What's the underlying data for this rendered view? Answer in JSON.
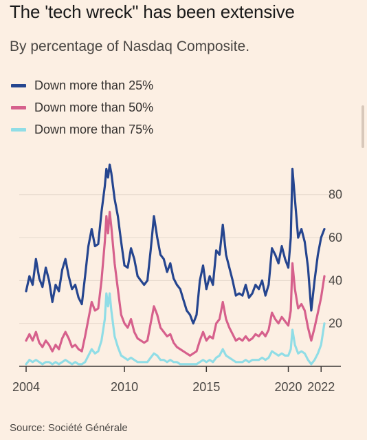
{
  "title": "The 'tech wreck\" has been extensive",
  "subtitle": "By percentage of Nasdaq Composite.",
  "source": "Source: Société Générale",
  "legend": [
    {
      "label": "Down more than 25%",
      "color": "#25458f"
    },
    {
      "label": "Down more than 50%",
      "color": "#d6608c"
    },
    {
      "label": "Down more than 75%",
      "color": "#90dde6"
    }
  ],
  "chart_data": {
    "type": "line",
    "title": "The 'tech wreck\" has been extensive",
    "subtitle": "By percentage of Nasdaq Composite.",
    "x_ticks": [
      "2004",
      "2010",
      "2015",
      "2020",
      "2022"
    ],
    "y_ticks": [
      "20",
      "40",
      "60",
      "80"
    ],
    "xlim": [
      2004,
      2022.2
    ],
    "ylim": [
      0,
      95
    ],
    "grid": true,
    "legend_position": "top-left",
    "series": [
      {
        "name": "Down more than 25%",
        "color": "#25458f",
        "points": [
          [
            2004.0,
            35
          ],
          [
            2004.2,
            42
          ],
          [
            2004.4,
            38
          ],
          [
            2004.6,
            50
          ],
          [
            2004.8,
            41
          ],
          [
            2005.0,
            37
          ],
          [
            2005.2,
            46
          ],
          [
            2005.4,
            40
          ],
          [
            2005.6,
            30
          ],
          [
            2005.8,
            38
          ],
          [
            2006.0,
            35
          ],
          [
            2006.2,
            45
          ],
          [
            2006.4,
            50
          ],
          [
            2006.6,
            42
          ],
          [
            2006.8,
            36
          ],
          [
            2007.0,
            38
          ],
          [
            2007.2,
            32
          ],
          [
            2007.4,
            29
          ],
          [
            2007.6,
            42
          ],
          [
            2007.8,
            56
          ],
          [
            2008.0,
            64
          ],
          [
            2008.2,
            56
          ],
          [
            2008.4,
            57
          ],
          [
            2008.6,
            72
          ],
          [
            2008.8,
            84
          ],
          [
            2008.9,
            92
          ],
          [
            2009.0,
            88
          ],
          [
            2009.1,
            94
          ],
          [
            2009.2,
            90
          ],
          [
            2009.4,
            78
          ],
          [
            2009.6,
            70
          ],
          [
            2009.8,
            58
          ],
          [
            2010.0,
            47
          ],
          [
            2010.2,
            46
          ],
          [
            2010.4,
            55
          ],
          [
            2010.6,
            50
          ],
          [
            2010.8,
            42
          ],
          [
            2011.0,
            40
          ],
          [
            2011.2,
            38
          ],
          [
            2011.4,
            40
          ],
          [
            2011.6,
            54
          ],
          [
            2011.8,
            70
          ],
          [
            2012.0,
            60
          ],
          [
            2012.2,
            52
          ],
          [
            2012.4,
            50
          ],
          [
            2012.6,
            44
          ],
          [
            2012.8,
            48
          ],
          [
            2013.0,
            41
          ],
          [
            2013.2,
            38
          ],
          [
            2013.4,
            36
          ],
          [
            2013.6,
            31
          ],
          [
            2013.8,
            26
          ],
          [
            2014.0,
            24
          ],
          [
            2014.2,
            20
          ],
          [
            2014.4,
            24
          ],
          [
            2014.6,
            40
          ],
          [
            2014.8,
            47
          ],
          [
            2015.0,
            36
          ],
          [
            2015.2,
            42
          ],
          [
            2015.4,
            38
          ],
          [
            2015.6,
            54
          ],
          [
            2015.8,
            52
          ],
          [
            2016.0,
            66
          ],
          [
            2016.2,
            52
          ],
          [
            2016.4,
            46
          ],
          [
            2016.6,
            40
          ],
          [
            2016.8,
            33
          ],
          [
            2017.0,
            34
          ],
          [
            2017.2,
            33
          ],
          [
            2017.4,
            38
          ],
          [
            2017.6,
            32
          ],
          [
            2017.8,
            34
          ],
          [
            2018.0,
            38
          ],
          [
            2018.2,
            36
          ],
          [
            2018.4,
            40
          ],
          [
            2018.6,
            33
          ],
          [
            2018.8,
            38
          ],
          [
            2019.0,
            55
          ],
          [
            2019.2,
            52
          ],
          [
            2019.4,
            48
          ],
          [
            2019.6,
            56
          ],
          [
            2019.8,
            50
          ],
          [
            2020.0,
            46
          ],
          [
            2020.15,
            60
          ],
          [
            2020.25,
            92
          ],
          [
            2020.4,
            78
          ],
          [
            2020.6,
            60
          ],
          [
            2020.8,
            64
          ],
          [
            2021.0,
            58
          ],
          [
            2021.2,
            46
          ],
          [
            2021.4,
            26
          ],
          [
            2021.6,
            40
          ],
          [
            2021.8,
            52
          ],
          [
            2022.0,
            60
          ],
          [
            2022.2,
            64
          ]
        ]
      },
      {
        "name": "Down more than 50%",
        "color": "#d6608c",
        "points": [
          [
            2004.0,
            12
          ],
          [
            2004.2,
            15
          ],
          [
            2004.4,
            12
          ],
          [
            2004.6,
            16
          ],
          [
            2004.8,
            11
          ],
          [
            2005.0,
            9
          ],
          [
            2005.2,
            12
          ],
          [
            2005.4,
            10
          ],
          [
            2005.6,
            7
          ],
          [
            2005.8,
            10
          ],
          [
            2006.0,
            8
          ],
          [
            2006.2,
            13
          ],
          [
            2006.4,
            16
          ],
          [
            2006.6,
            13
          ],
          [
            2006.8,
            9
          ],
          [
            2007.0,
            10
          ],
          [
            2007.2,
            8
          ],
          [
            2007.4,
            7
          ],
          [
            2007.6,
            14
          ],
          [
            2007.8,
            22
          ],
          [
            2008.0,
            30
          ],
          [
            2008.2,
            26
          ],
          [
            2008.4,
            27
          ],
          [
            2008.6,
            40
          ],
          [
            2008.8,
            58
          ],
          [
            2008.9,
            70
          ],
          [
            2009.0,
            62
          ],
          [
            2009.1,
            72
          ],
          [
            2009.2,
            65
          ],
          [
            2009.4,
            48
          ],
          [
            2009.6,
            36
          ],
          [
            2009.8,
            24
          ],
          [
            2010.0,
            20
          ],
          [
            2010.2,
            18
          ],
          [
            2010.4,
            22
          ],
          [
            2010.6,
            16
          ],
          [
            2010.8,
            13
          ],
          [
            2011.0,
            12
          ],
          [
            2011.2,
            11
          ],
          [
            2011.4,
            12
          ],
          [
            2011.6,
            20
          ],
          [
            2011.8,
            28
          ],
          [
            2012.0,
            24
          ],
          [
            2012.2,
            18
          ],
          [
            2012.4,
            16
          ],
          [
            2012.6,
            14
          ],
          [
            2012.8,
            15
          ],
          [
            2013.0,
            11
          ],
          [
            2013.2,
            9
          ],
          [
            2013.4,
            8
          ],
          [
            2013.6,
            7
          ],
          [
            2013.8,
            6
          ],
          [
            2014.0,
            5
          ],
          [
            2014.2,
            6
          ],
          [
            2014.4,
            7
          ],
          [
            2014.6,
            12
          ],
          [
            2014.8,
            16
          ],
          [
            2015.0,
            12
          ],
          [
            2015.2,
            14
          ],
          [
            2015.4,
            13
          ],
          [
            2015.6,
            20
          ],
          [
            2015.8,
            22
          ],
          [
            2016.0,
            30
          ],
          [
            2016.2,
            22
          ],
          [
            2016.4,
            18
          ],
          [
            2016.6,
            15
          ],
          [
            2016.8,
            12
          ],
          [
            2017.0,
            13
          ],
          [
            2017.2,
            12
          ],
          [
            2017.4,
            14
          ],
          [
            2017.6,
            12
          ],
          [
            2017.8,
            13
          ],
          [
            2018.0,
            15
          ],
          [
            2018.2,
            14
          ],
          [
            2018.4,
            16
          ],
          [
            2018.6,
            14
          ],
          [
            2018.8,
            17
          ],
          [
            2019.0,
            25
          ],
          [
            2019.2,
            22
          ],
          [
            2019.4,
            20
          ],
          [
            2019.6,
            23
          ],
          [
            2019.8,
            21
          ],
          [
            2020.0,
            19
          ],
          [
            2020.15,
            26
          ],
          [
            2020.25,
            48
          ],
          [
            2020.4,
            36
          ],
          [
            2020.6,
            27
          ],
          [
            2020.8,
            29
          ],
          [
            2021.0,
            26
          ],
          [
            2021.2,
            18
          ],
          [
            2021.4,
            12
          ],
          [
            2021.6,
            18
          ],
          [
            2021.8,
            25
          ],
          [
            2022.0,
            32
          ],
          [
            2022.2,
            42
          ]
        ]
      },
      {
        "name": "Down more than 75%",
        "color": "#90dde6",
        "points": [
          [
            2004.0,
            1
          ],
          [
            2004.2,
            3
          ],
          [
            2004.4,
            2
          ],
          [
            2004.6,
            3
          ],
          [
            2004.8,
            2
          ],
          [
            2005.0,
            1
          ],
          [
            2005.2,
            2
          ],
          [
            2005.4,
            2
          ],
          [
            2005.6,
            1
          ],
          [
            2005.8,
            2
          ],
          [
            2006.0,
            1
          ],
          [
            2006.2,
            2
          ],
          [
            2006.4,
            3
          ],
          [
            2006.6,
            2
          ],
          [
            2006.8,
            1
          ],
          [
            2007.0,
            2
          ],
          [
            2007.2,
            1
          ],
          [
            2007.4,
            1
          ],
          [
            2007.6,
            2
          ],
          [
            2007.8,
            5
          ],
          [
            2008.0,
            8
          ],
          [
            2008.2,
            6
          ],
          [
            2008.4,
            7
          ],
          [
            2008.6,
            12
          ],
          [
            2008.8,
            22
          ],
          [
            2008.9,
            34
          ],
          [
            2009.0,
            28
          ],
          [
            2009.1,
            34
          ],
          [
            2009.2,
            26
          ],
          [
            2009.4,
            14
          ],
          [
            2009.6,
            9
          ],
          [
            2009.8,
            5
          ],
          [
            2010.0,
            4
          ],
          [
            2010.2,
            3
          ],
          [
            2010.4,
            4
          ],
          [
            2010.6,
            3
          ],
          [
            2010.8,
            2
          ],
          [
            2011.0,
            2
          ],
          [
            2011.2,
            2
          ],
          [
            2011.4,
            2
          ],
          [
            2011.6,
            4
          ],
          [
            2011.8,
            6
          ],
          [
            2012.0,
            5
          ],
          [
            2012.2,
            3
          ],
          [
            2012.4,
            3
          ],
          [
            2012.6,
            2
          ],
          [
            2012.8,
            3
          ],
          [
            2013.0,
            2
          ],
          [
            2013.2,
            2
          ],
          [
            2013.4,
            1
          ],
          [
            2013.6,
            1
          ],
          [
            2013.8,
            1
          ],
          [
            2014.0,
            1
          ],
          [
            2014.2,
            1
          ],
          [
            2014.4,
            1
          ],
          [
            2014.6,
            2
          ],
          [
            2014.8,
            3
          ],
          [
            2015.0,
            2
          ],
          [
            2015.2,
            3
          ],
          [
            2015.4,
            2
          ],
          [
            2015.6,
            4
          ],
          [
            2015.8,
            5
          ],
          [
            2016.0,
            8
          ],
          [
            2016.2,
            5
          ],
          [
            2016.4,
            4
          ],
          [
            2016.6,
            3
          ],
          [
            2016.8,
            2
          ],
          [
            2017.0,
            2
          ],
          [
            2017.2,
            2
          ],
          [
            2017.4,
            3
          ],
          [
            2017.6,
            2
          ],
          [
            2017.8,
            3
          ],
          [
            2018.0,
            3
          ],
          [
            2018.2,
            3
          ],
          [
            2018.4,
            4
          ],
          [
            2018.6,
            3
          ],
          [
            2018.8,
            4
          ],
          [
            2019.0,
            7
          ],
          [
            2019.2,
            6
          ],
          [
            2019.4,
            5
          ],
          [
            2019.6,
            6
          ],
          [
            2019.8,
            5
          ],
          [
            2020.0,
            5
          ],
          [
            2020.15,
            8
          ],
          [
            2020.25,
            17
          ],
          [
            2020.4,
            10
          ],
          [
            2020.6,
            6
          ],
          [
            2020.8,
            7
          ],
          [
            2021.0,
            6
          ],
          [
            2021.2,
            3
          ],
          [
            2021.4,
            1
          ],
          [
            2021.6,
            3
          ],
          [
            2021.8,
            6
          ],
          [
            2022.0,
            10
          ],
          [
            2022.2,
            20
          ]
        ]
      }
    ]
  }
}
